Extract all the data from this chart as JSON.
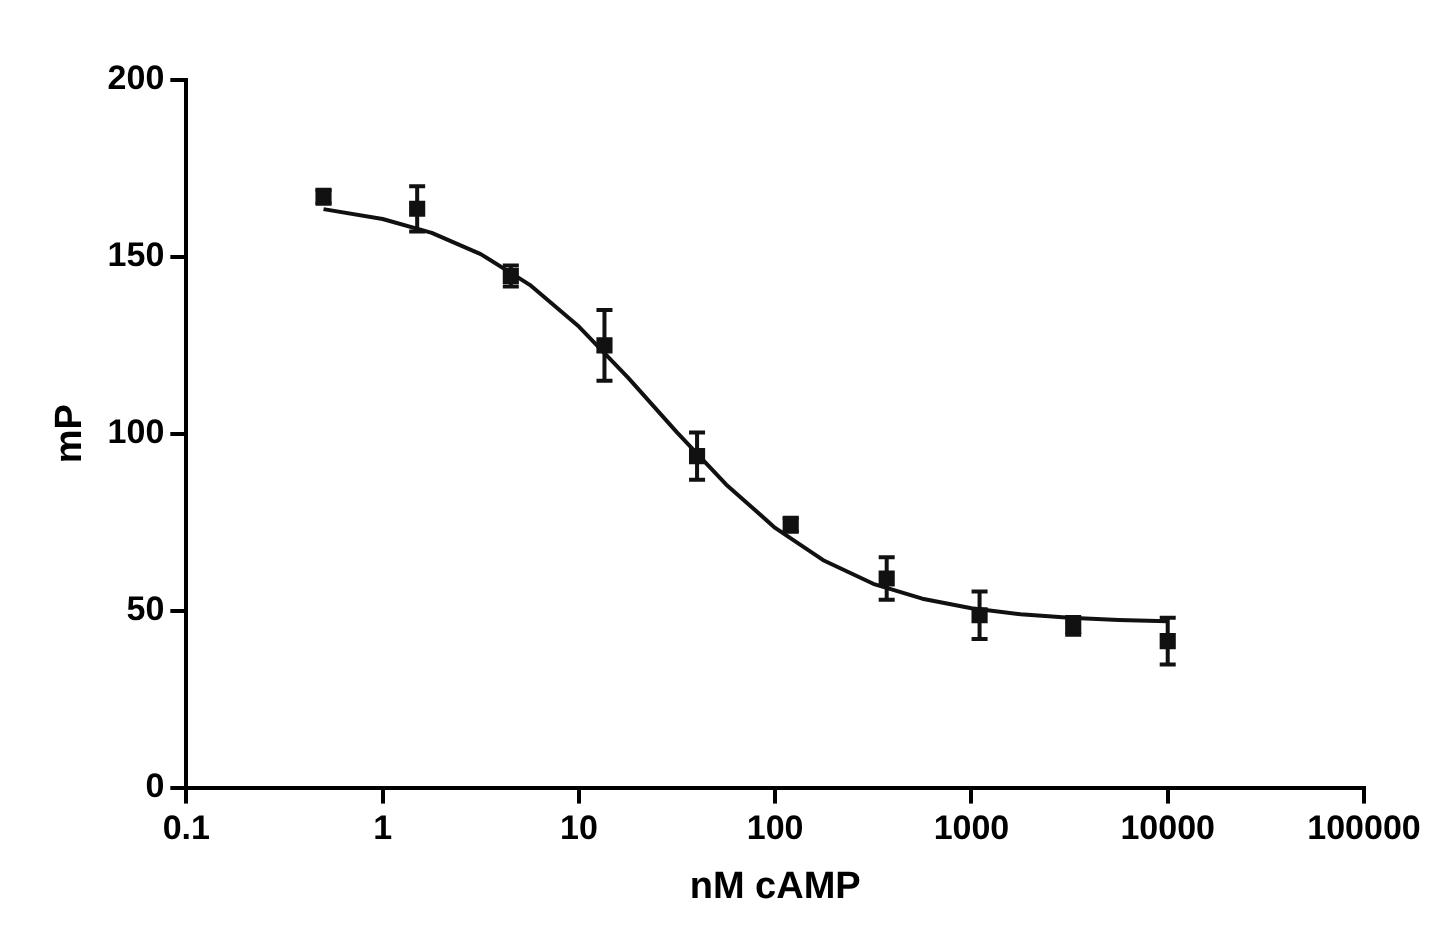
{
  "chart_data": {
    "type": "scatter",
    "xlabel": "nM cAMP",
    "ylabel": "mP",
    "log": "x",
    "grid": false,
    "legend": false,
    "marker": "square",
    "xlim": [
      0.1,
      100000
    ],
    "xticks": [
      0.1,
      1,
      10,
      100,
      1000,
      10000,
      100000
    ],
    "ylim": [
      0,
      200
    ],
    "yticks": [
      0,
      50,
      100,
      150,
      200
    ],
    "series": [
      {
        "color": "#111111",
        "x": [
          0.5,
          1.5,
          4.5,
          13.5,
          40,
          120,
          370,
          1100,
          3300,
          10000
        ],
        "values": [
          167,
          163.6,
          144.6,
          125,
          93.7,
          74.3,
          59.1,
          48.7,
          45.7,
          41.4
        ],
        "errors": [
          2,
          6.4,
          3,
          10,
          6.7,
          2,
          6,
          6.7,
          2.5,
          6.6
        ]
      },
      {
        "type": "line",
        "color": "#111111",
        "marker": "none",
        "x": [
          0.5,
          1,
          1.78,
          3.16,
          5.62,
          10,
          17.8,
          31.6,
          56.2,
          100,
          178,
          316,
          562,
          1000,
          1780,
          3160,
          5620,
          10000
        ],
        "values": [
          163.5,
          160.7,
          156.8,
          150.8,
          142.1,
          130.3,
          115.9,
          100.4,
          85.7,
          73.4,
          64.1,
          57.6,
          53.4,
          50.7,
          49,
          48,
          47.4,
          47
        ]
      }
    ]
  }
}
